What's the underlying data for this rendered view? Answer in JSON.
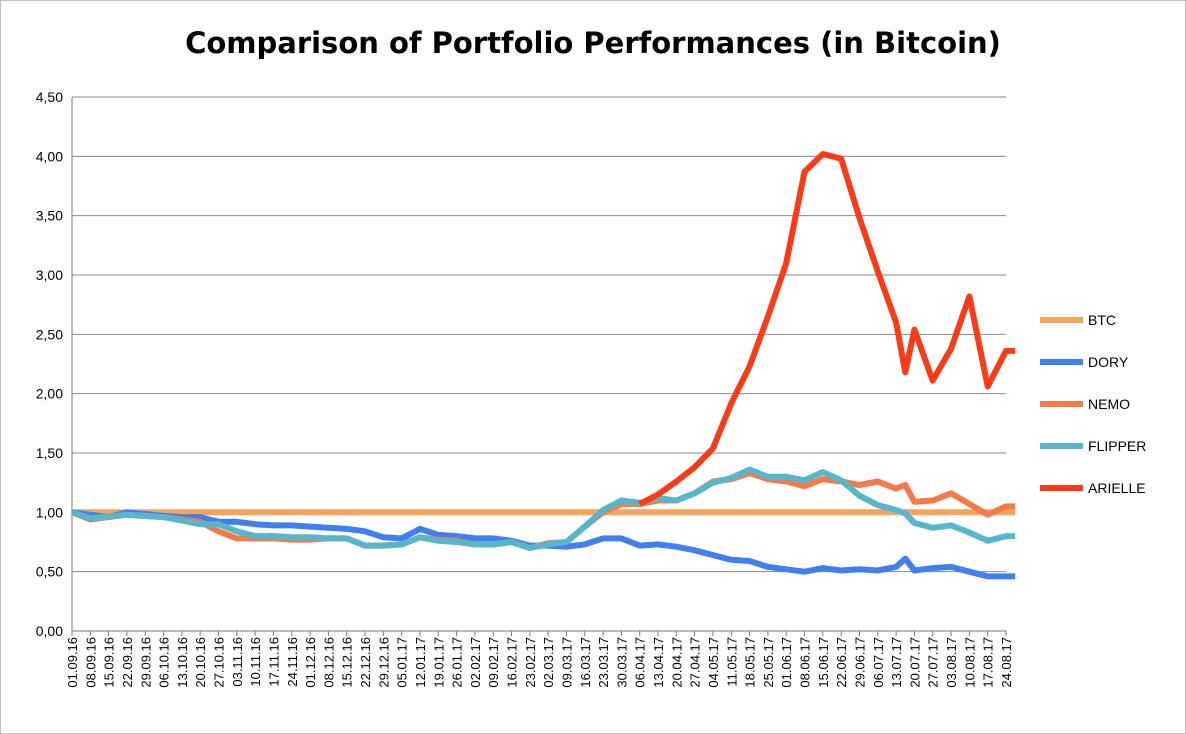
{
  "chart_data": {
    "type": "line",
    "title": "Comparison of Portfolio Performances (in Bitcoin)",
    "xlabel": "",
    "ylabel": "",
    "ylim": [
      0,
      4.5
    ],
    "yticks": [
      "0,00",
      "0,50",
      "1,00",
      "1,50",
      "2,00",
      "2,50",
      "3,00",
      "3,50",
      "4,00",
      "4,50"
    ],
    "grid": true,
    "legend_position": "right",
    "x": [
      "01.09.16",
      "04.09.16",
      "08.09.16",
      "11.09.16",
      "15.09.16",
      "18.09.16",
      "22.09.16",
      "25.09.16",
      "29.09.16",
      "02.10.16",
      "06.10.16",
      "09.10.16",
      "13.10.16",
      "16.10.16",
      "20.10.16",
      "23.10.16",
      "27.10.16",
      "30.10.16",
      "03.11.16",
      "06.11.16",
      "10.11.16",
      "13.11.16",
      "17.11.16",
      "20.11.16",
      "24.11.16",
      "27.11.16",
      "01.12.16",
      "04.12.16",
      "08.12.16",
      "11.12.16",
      "15.12.16",
      "18.12.16",
      "22.12.16",
      "25.12.16",
      "29.12.16",
      "01.01.17",
      "05.01.17",
      "08.01.17",
      "12.01.17",
      "15.01.17",
      "19.01.17",
      "22.01.17",
      "26.01.17",
      "29.01.17",
      "02.02.17",
      "05.02.17",
      "09.02.17",
      "12.02.17",
      "16.02.17",
      "19.02.17",
      "23.02.17",
      "26.02.17",
      "02.03.17",
      "05.03.17",
      "09.03.17",
      "12.03.17",
      "16.03.17",
      "19.03.17",
      "23.03.17",
      "26.03.17",
      "30.03.17",
      "02.04.17",
      "06.04.17",
      "09.04.17",
      "13.04.17",
      "16.04.17",
      "20.04.17",
      "23.04.17",
      "27.04.17",
      "30.04.17",
      "04.05.17",
      "07.05.17",
      "11.05.17",
      "14.05.17",
      "18.05.17",
      "21.05.17",
      "25.05.17",
      "28.05.17",
      "01.06.17",
      "04.06.17",
      "08.06.17",
      "11.06.17",
      "15.06.17",
      "18.06.17",
      "22.06.17",
      "25.06.17",
      "29.06.17",
      "02.07.17",
      "06.07.17",
      "09.07.17",
      "13.07.17",
      "16.07.17",
      "20.07.17",
      "23.07.17",
      "27.07.17",
      "30.07.17",
      "03.08.17",
      "06.08.17",
      "10.08.17",
      "13.08.17",
      "17.08.17",
      "20.08.17",
      "24.08.17"
    ],
    "x_tick_labels": [
      "01.09.16",
      "08.09.16",
      "15.09.16",
      "22.09.16",
      "29.09.16",
      "06.10.16",
      "13.10.16",
      "20.10.16",
      "27.10.16",
      "03.11.16",
      "10.11.16",
      "17.11.16",
      "24.11.16",
      "01.12.16",
      "08.12.16",
      "15.12.16",
      "22.12.16",
      "29.12.16",
      "05.01.17",
      "12.01.17",
      "19.01.17",
      "26.01.17",
      "02.02.17",
      "09.02.17",
      "16.02.17",
      "23.02.17",
      "02.03.17",
      "09.03.17",
      "16.03.17",
      "23.03.17",
      "30.03.17",
      "06.04.17",
      "13.04.17",
      "20.04.17",
      "27.04.17",
      "04.05.17",
      "11.05.17",
      "18.05.17",
      "25.05.17",
      "01.06.17",
      "08.06.17",
      "15.06.17",
      "22.06.17",
      "29.06.17",
      "06.07.17",
      "13.07.17",
      "20.07.17",
      "27.07.17",
      "03.08.17",
      "10.08.17",
      "17.08.17",
      "24.08.17"
    ],
    "series": [
      {
        "name": "BTC",
        "color": "#f5a45a",
        "points": [
          [
            0,
            1.0
          ],
          [
            103,
            1.0
          ]
        ]
      },
      {
        "name": "DORY",
        "color": "#3f7ff0",
        "points": [
          [
            0,
            1.0
          ],
          [
            4,
            0.96
          ],
          [
            6,
            1.0
          ],
          [
            10,
            0.97
          ],
          [
            12,
            0.96
          ],
          [
            14,
            0.96
          ],
          [
            16,
            0.92
          ],
          [
            18,
            0.92
          ],
          [
            20,
            0.9
          ],
          [
            22,
            0.89
          ],
          [
            24,
            0.89
          ],
          [
            26,
            0.88
          ],
          [
            28,
            0.87
          ],
          [
            30,
            0.86
          ],
          [
            32,
            0.84
          ],
          [
            34,
            0.79
          ],
          [
            36,
            0.78
          ],
          [
            38,
            0.86
          ],
          [
            40,
            0.81
          ],
          [
            42,
            0.8
          ],
          [
            44,
            0.78
          ],
          [
            46,
            0.78
          ],
          [
            48,
            0.76
          ],
          [
            50,
            0.72
          ],
          [
            52,
            0.72
          ],
          [
            54,
            0.71
          ],
          [
            56,
            0.73
          ],
          [
            58,
            0.78
          ],
          [
            60,
            0.78
          ],
          [
            62,
            0.72
          ],
          [
            64,
            0.73
          ],
          [
            66,
            0.71
          ],
          [
            68,
            0.68
          ],
          [
            70,
            0.64
          ],
          [
            72,
            0.6
          ],
          [
            74,
            0.59
          ],
          [
            76,
            0.54
          ],
          [
            78,
            0.52
          ],
          [
            80,
            0.5
          ],
          [
            82,
            0.53
          ],
          [
            84,
            0.51
          ],
          [
            86,
            0.52
          ],
          [
            88,
            0.51
          ],
          [
            90,
            0.54
          ],
          [
            91,
            0.61
          ],
          [
            92,
            0.51
          ],
          [
            94,
            0.53
          ],
          [
            96,
            0.54
          ],
          [
            98,
            0.5
          ],
          [
            100,
            0.46
          ],
          [
            102,
            0.46
          ],
          [
            103,
            0.46
          ]
        ]
      },
      {
        "name": "NEMO",
        "color": "#f47a4a",
        "points": [
          [
            0,
            1.0
          ],
          [
            2,
            0.94
          ],
          [
            6,
            0.98
          ],
          [
            10,
            0.96
          ],
          [
            12,
            0.94
          ],
          [
            14,
            0.92
          ],
          [
            16,
            0.84
          ],
          [
            18,
            0.78
          ],
          [
            20,
            0.78
          ],
          [
            22,
            0.78
          ],
          [
            24,
            0.77
          ],
          [
            26,
            0.77
          ],
          [
            28,
            0.78
          ],
          [
            30,
            0.78
          ],
          [
            32,
            0.72
          ],
          [
            34,
            0.72
          ],
          [
            36,
            0.73
          ],
          [
            38,
            0.79
          ],
          [
            40,
            0.77
          ],
          [
            42,
            0.76
          ],
          [
            44,
            0.73
          ],
          [
            46,
            0.73
          ],
          [
            48,
            0.75
          ],
          [
            50,
            0.7
          ],
          [
            52,
            0.74
          ],
          [
            54,
            0.75
          ],
          [
            56,
            0.88
          ],
          [
            58,
            1.0
          ],
          [
            60,
            1.07
          ],
          [
            62,
            1.07
          ],
          [
            64,
            1.1
          ],
          [
            66,
            1.1
          ],
          [
            68,
            1.16
          ],
          [
            70,
            1.26
          ],
          [
            72,
            1.28
          ],
          [
            74,
            1.33
          ],
          [
            76,
            1.28
          ],
          [
            78,
            1.26
          ],
          [
            80,
            1.22
          ],
          [
            82,
            1.28
          ],
          [
            84,
            1.26
          ],
          [
            86,
            1.23
          ],
          [
            88,
            1.26
          ],
          [
            90,
            1.2
          ],
          [
            91,
            1.23
          ],
          [
            92,
            1.09
          ],
          [
            94,
            1.1
          ],
          [
            96,
            1.16
          ],
          [
            98,
            1.07
          ],
          [
            100,
            0.98
          ],
          [
            102,
            1.05
          ],
          [
            103,
            1.05
          ]
        ]
      },
      {
        "name": "FLIPPER",
        "color": "#56b7cc",
        "points": [
          [
            0,
            1.0
          ],
          [
            2,
            0.95
          ],
          [
            6,
            0.98
          ],
          [
            10,
            0.96
          ],
          [
            12,
            0.93
          ],
          [
            14,
            0.9
          ],
          [
            16,
            0.9
          ],
          [
            18,
            0.84
          ],
          [
            20,
            0.8
          ],
          [
            22,
            0.8
          ],
          [
            24,
            0.79
          ],
          [
            26,
            0.79
          ],
          [
            28,
            0.78
          ],
          [
            30,
            0.78
          ],
          [
            32,
            0.72
          ],
          [
            34,
            0.72
          ],
          [
            36,
            0.73
          ],
          [
            38,
            0.79
          ],
          [
            40,
            0.76
          ],
          [
            42,
            0.75
          ],
          [
            44,
            0.73
          ],
          [
            46,
            0.73
          ],
          [
            48,
            0.75
          ],
          [
            50,
            0.7
          ],
          [
            52,
            0.73
          ],
          [
            54,
            0.75
          ],
          [
            56,
            0.88
          ],
          [
            58,
            1.02
          ],
          [
            60,
            1.1
          ],
          [
            62,
            1.08
          ],
          [
            64,
            1.12
          ],
          [
            66,
            1.1
          ],
          [
            68,
            1.16
          ],
          [
            70,
            1.25
          ],
          [
            72,
            1.29
          ],
          [
            74,
            1.36
          ],
          [
            76,
            1.3
          ],
          [
            78,
            1.3
          ],
          [
            80,
            1.27
          ],
          [
            82,
            1.34
          ],
          [
            84,
            1.27
          ],
          [
            86,
            1.14
          ],
          [
            88,
            1.06
          ],
          [
            90,
            1.02
          ],
          [
            91,
            0.99
          ],
          [
            92,
            0.91
          ],
          [
            94,
            0.87
          ],
          [
            96,
            0.89
          ],
          [
            98,
            0.83
          ],
          [
            100,
            0.76
          ],
          [
            102,
            0.8
          ],
          [
            103,
            0.8
          ]
        ]
      },
      {
        "name": "ARIELLE",
        "color": "#fb3b17",
        "points": [
          [
            62,
            1.07
          ],
          [
            64,
            1.15
          ],
          [
            66,
            1.26
          ],
          [
            68,
            1.38
          ],
          [
            70,
            1.54
          ],
          [
            72,
            1.92
          ],
          [
            74,
            2.23
          ],
          [
            76,
            2.65
          ],
          [
            78,
            3.1
          ],
          [
            80,
            3.87
          ],
          [
            82,
            4.02
          ],
          [
            84,
            3.98
          ],
          [
            86,
            3.48
          ],
          [
            88,
            3.03
          ],
          [
            90,
            2.6
          ],
          [
            91,
            2.18
          ],
          [
            92,
            2.54
          ],
          [
            94,
            2.11
          ],
          [
            96,
            2.38
          ],
          [
            98,
            2.82
          ],
          [
            100,
            2.06
          ],
          [
            102,
            2.36
          ],
          [
            103,
            2.36
          ]
        ]
      }
    ]
  }
}
